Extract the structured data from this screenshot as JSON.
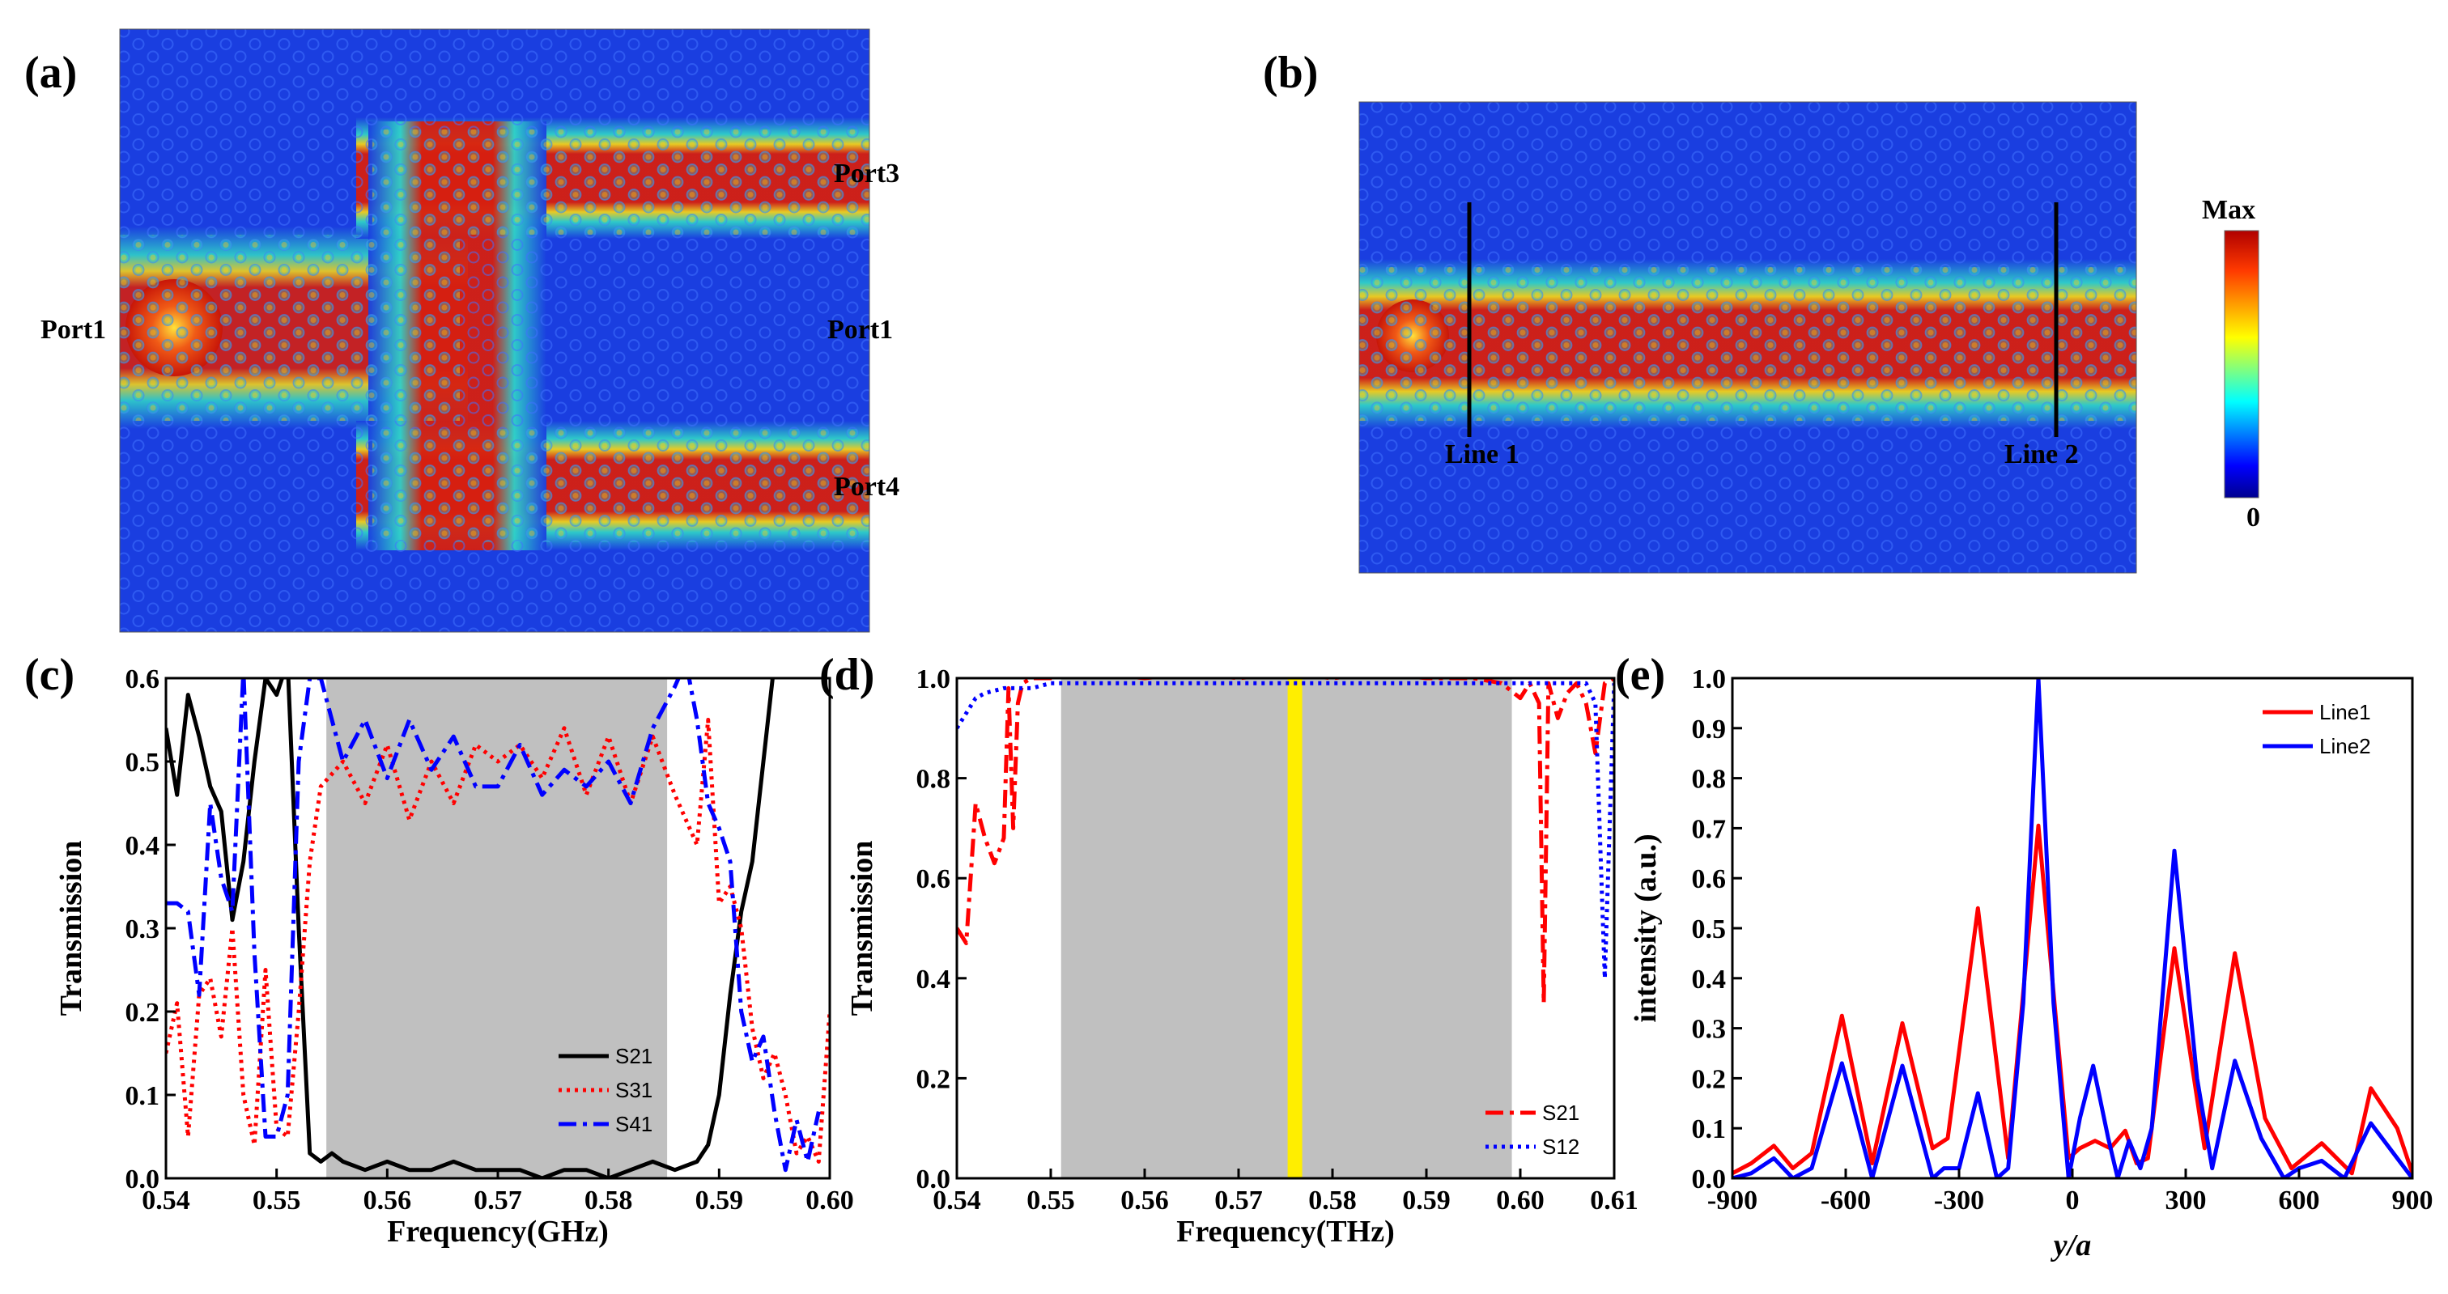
{
  "figure": {
    "panels": {
      "a": "(a)",
      "b": "(b)",
      "c": "(c)",
      "d": "(d)",
      "e": "(e)"
    },
    "field_a": {
      "ports": [
        "Port3",
        "Port1",
        "Port1",
        "Port4"
      ],
      "colors": {
        "background": "#1a3ee0",
        "hot": "#d61f10",
        "mid": "#f2d21a",
        "cool": "#2fd0c8"
      }
    },
    "field_b": {
      "lines": [
        "Line 1",
        "Line 2"
      ],
      "colorbar": {
        "max": "Max",
        "min": "0"
      }
    }
  },
  "chart_data": [
    {
      "id": "c",
      "type": "line",
      "xlabel": "Frequency(GHz)",
      "ylabel": "Transmission",
      "xlim": [
        0.54,
        0.6
      ],
      "ylim": [
        0.0,
        0.6
      ],
      "xticks": [
        "0.54",
        "0.55",
        "0.56",
        "0.57",
        "0.58",
        "0.59",
        "0.60"
      ],
      "yticks": [
        "0.0",
        "0.1",
        "0.2",
        "0.3",
        "0.4",
        "0.5",
        "0.6"
      ],
      "band": [
        0.5545,
        0.5853
      ],
      "series": [
        {
          "name": "S21",
          "color": "#000000",
          "dash": "none",
          "x": [
            0.54,
            0.541,
            0.542,
            0.543,
            0.544,
            0.545,
            0.546,
            0.547,
            0.548,
            0.549,
            0.55,
            0.551,
            0.552,
            0.553,
            0.554,
            0.555,
            0.556,
            0.558,
            0.56,
            0.562,
            0.564,
            0.566,
            0.568,
            0.57,
            0.572,
            0.574,
            0.576,
            0.578,
            0.58,
            0.582,
            0.584,
            0.586,
            0.588,
            0.589,
            0.59,
            0.591,
            0.592,
            0.593,
            0.594,
            0.595
          ],
          "y": [
            0.54,
            0.46,
            0.58,
            0.53,
            0.47,
            0.44,
            0.31,
            0.38,
            0.5,
            0.6,
            0.58,
            0.62,
            0.3,
            0.03,
            0.02,
            0.03,
            0.02,
            0.01,
            0.02,
            0.01,
            0.01,
            0.02,
            0.01,
            0.01,
            0.01,
            0.0,
            0.01,
            0.01,
            0.0,
            0.01,
            0.02,
            0.01,
            0.02,
            0.04,
            0.1,
            0.22,
            0.32,
            0.38,
            0.5,
            0.62
          ]
        },
        {
          "name": "S31",
          "color": "#ff0000",
          "dash": "4,6",
          "x": [
            0.54,
            0.541,
            0.542,
            0.543,
            0.544,
            0.545,
            0.546,
            0.547,
            0.548,
            0.549,
            0.55,
            0.551,
            0.552,
            0.553,
            0.554,
            0.556,
            0.558,
            0.56,
            0.562,
            0.564,
            0.566,
            0.568,
            0.57,
            0.572,
            0.574,
            0.576,
            0.578,
            0.58,
            0.582,
            0.584,
            0.586,
            0.588,
            0.589,
            0.59,
            0.591,
            0.592,
            0.593,
            0.594,
            0.595,
            0.596,
            0.597,
            0.598,
            0.599,
            0.6
          ],
          "y": [
            0.15,
            0.21,
            0.05,
            0.22,
            0.24,
            0.17,
            0.3,
            0.1,
            0.04,
            0.25,
            0.06,
            0.05,
            0.2,
            0.38,
            0.47,
            0.5,
            0.45,
            0.52,
            0.43,
            0.5,
            0.45,
            0.52,
            0.5,
            0.52,
            0.48,
            0.54,
            0.46,
            0.53,
            0.45,
            0.53,
            0.46,
            0.4,
            0.55,
            0.33,
            0.35,
            0.3,
            0.18,
            0.12,
            0.15,
            0.1,
            0.03,
            0.05,
            0.02,
            0.2
          ]
        },
        {
          "name": "S41",
          "color": "#0000ff",
          "dash": "22,8,5,8",
          "x": [
            0.54,
            0.541,
            0.542,
            0.543,
            0.544,
            0.545,
            0.546,
            0.547,
            0.548,
            0.549,
            0.55,
            0.551,
            0.552,
            0.553,
            0.554,
            0.556,
            0.558,
            0.56,
            0.562,
            0.564,
            0.566,
            0.568,
            0.57,
            0.572,
            0.574,
            0.576,
            0.578,
            0.58,
            0.582,
            0.584,
            0.586,
            0.587,
            0.588,
            0.589,
            0.59,
            0.591,
            0.592,
            0.593,
            0.594,
            0.595,
            0.596,
            0.597,
            0.598,
            0.599
          ],
          "y": [
            0.33,
            0.33,
            0.32,
            0.22,
            0.45,
            0.36,
            0.32,
            0.61,
            0.27,
            0.05,
            0.05,
            0.1,
            0.5,
            0.6,
            0.6,
            0.5,
            0.55,
            0.48,
            0.55,
            0.49,
            0.53,
            0.47,
            0.47,
            0.52,
            0.46,
            0.49,
            0.47,
            0.5,
            0.45,
            0.54,
            0.59,
            0.62,
            0.55,
            0.45,
            0.42,
            0.38,
            0.2,
            0.14,
            0.17,
            0.08,
            0.01,
            0.07,
            0.02,
            0.08
          ]
        }
      ]
    },
    {
      "id": "d",
      "type": "line",
      "xlabel": "Frequency(THz)",
      "ylabel": "Transmission",
      "xlim": [
        0.54,
        0.61
      ],
      "ylim": [
        0.0,
        1.0
      ],
      "xticks": [
        "0.54",
        "0.55",
        "0.56",
        "0.57",
        "0.58",
        "0.59",
        "0.60",
        "0.61"
      ],
      "yticks": [
        "0.0",
        "0.2",
        "0.4",
        "0.6",
        "0.8",
        "1.0"
      ],
      "band": [
        0.5511,
        0.5991
      ],
      "highlight": 0.576,
      "series": [
        {
          "name": "S21",
          "color": "#ff0000",
          "dash": "22,8,5,8",
          "x": [
            0.54,
            0.541,
            0.542,
            0.543,
            0.544,
            0.545,
            0.5455,
            0.546,
            0.5465,
            0.547,
            0.548,
            0.55,
            0.555,
            0.56,
            0.565,
            0.57,
            0.575,
            0.58,
            0.585,
            0.59,
            0.595,
            0.598,
            0.6,
            0.601,
            0.602,
            0.6025,
            0.603,
            0.604,
            0.605,
            0.606,
            0.607,
            0.608,
            0.609,
            0.61
          ],
          "y": [
            0.5,
            0.47,
            0.75,
            0.68,
            0.63,
            0.68,
            0.98,
            0.7,
            0.95,
            0.99,
            1.0,
            1.0,
            1.01,
            1.0,
            1.01,
            1.0,
            1.01,
            1.0,
            1.01,
            1.0,
            1.0,
            0.99,
            0.96,
            0.99,
            0.95,
            0.35,
            0.99,
            0.92,
            0.97,
            0.99,
            0.95,
            0.85,
            0.99,
            1.0
          ]
        },
        {
          "name": "S12",
          "color": "#0000ff",
          "dash": "4,6",
          "x": [
            0.54,
            0.541,
            0.542,
            0.543,
            0.545,
            0.548,
            0.55,
            0.56,
            0.57,
            0.58,
            0.59,
            0.6,
            0.605,
            0.607,
            0.608,
            0.609,
            0.61
          ],
          "y": [
            0.9,
            0.93,
            0.96,
            0.97,
            0.98,
            0.98,
            0.99,
            0.99,
            0.99,
            0.99,
            0.99,
            0.99,
            0.99,
            0.99,
            0.95,
            0.4,
            0.99
          ]
        }
      ]
    },
    {
      "id": "e",
      "type": "line",
      "xlabel": "y/a",
      "ylabel": "intensity (a.u.)",
      "xlim": [
        -900,
        900
      ],
      "ylim": [
        0.0,
        1.0
      ],
      "xticks": [
        "-900",
        "-600",
        "-300",
        "0",
        "300",
        "600",
        "900"
      ],
      "yticks": [
        "0.0",
        "0.1",
        "0.2",
        "0.3",
        "0.4",
        "0.5",
        "0.6",
        "0.7",
        "0.8",
        "0.9",
        "1.0"
      ],
      "series": [
        {
          "name": "Line1",
          "color": "#ff0000",
          "dash": "none",
          "x": [
            -900,
            -850,
            -790,
            -740,
            -690,
            -610,
            -530,
            -450,
            -370,
            -330,
            -250,
            -170,
            -90,
            -10,
            20,
            60,
            100,
            140,
            170,
            200,
            270,
            350,
            430,
            510,
            580,
            660,
            740,
            790,
            860,
            900
          ],
          "y": [
            0.01,
            0.03,
            0.065,
            0.02,
            0.05,
            0.325,
            0.03,
            0.31,
            0.06,
            0.08,
            0.54,
            0.04,
            0.705,
            0.04,
            0.06,
            0.075,
            0.06,
            0.095,
            0.03,
            0.04,
            0.46,
            0.06,
            0.45,
            0.12,
            0.02,
            0.07,
            0.01,
            0.18,
            0.1,
            0.01
          ]
        },
        {
          "name": "Line2",
          "color": "#0000ff",
          "dash": "none",
          "x": [
            -900,
            -850,
            -790,
            -740,
            -690,
            -610,
            -530,
            -450,
            -370,
            -340,
            -300,
            -250,
            -200,
            -170,
            -130,
            -90,
            -50,
            -10,
            20,
            55,
            95,
            120,
            150,
            180,
            210,
            270,
            330,
            370,
            430,
            500,
            560,
            600,
            660,
            720,
            790,
            860,
            900
          ],
          "y": [
            0.0,
            0.01,
            0.04,
            0.0,
            0.02,
            0.23,
            0.0,
            0.225,
            0.0,
            0.02,
            0.02,
            0.17,
            0.0,
            0.02,
            0.35,
            1.0,
            0.35,
            0.0,
            0.12,
            0.225,
            0.08,
            0.0,
            0.075,
            0.02,
            0.1,
            0.655,
            0.2,
            0.02,
            0.235,
            0.08,
            0.0,
            0.02,
            0.035,
            0.0,
            0.11,
            0.04,
            0.0
          ]
        }
      ]
    }
  ]
}
